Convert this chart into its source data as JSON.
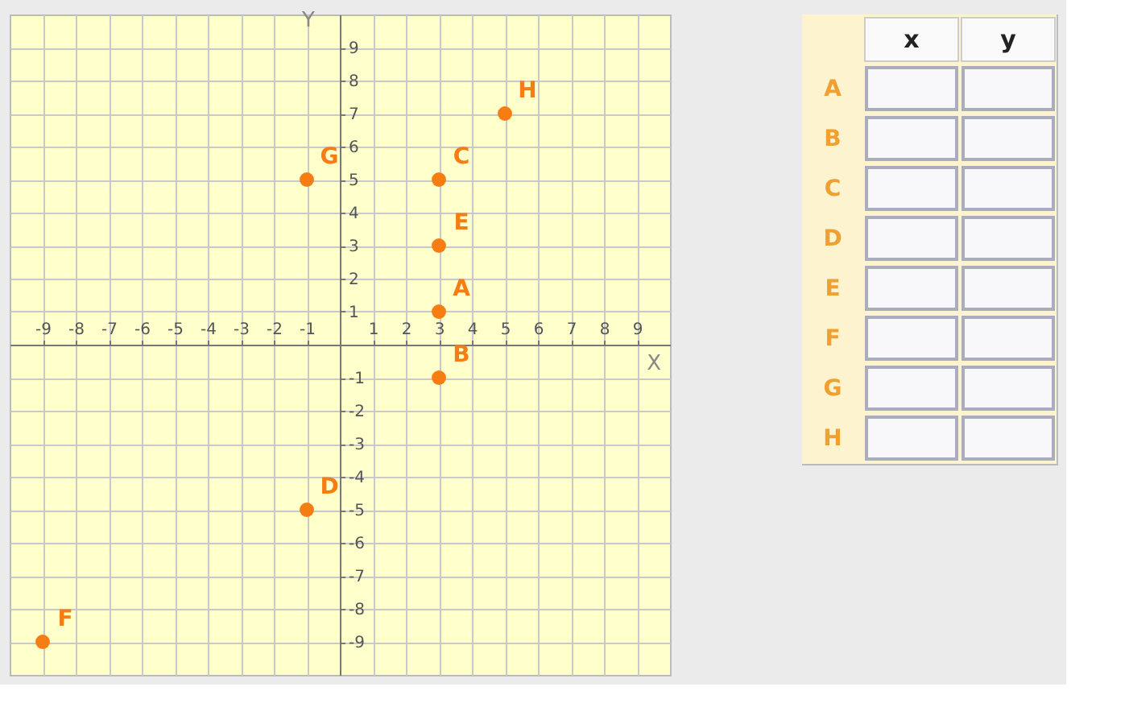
{
  "chart_data": [
    {
      "type": "scatter",
      "xlabel": "X",
      "ylabel": "Y",
      "x": [
        3,
        3,
        3,
        -1,
        3,
        -9,
        -1,
        5
      ],
      "values": [
        1,
        -1,
        5,
        -5,
        3,
        -9,
        5,
        7
      ],
      "color": "#f57d14",
      "marker": "circle",
      "grid": true,
      "xlim": [
        -10,
        10
      ],
      "ylim": [
        -10,
        10
      ],
      "xticks": [
        -9,
        -8,
        -7,
        -6,
        -5,
        -4,
        -3,
        -2,
        -1,
        1,
        2,
        3,
        4,
        5,
        6,
        7,
        8,
        9
      ],
      "yticks": [
        -9,
        -8,
        -7,
        -6,
        -5,
        -4,
        -3,
        -2,
        -1,
        1,
        2,
        3,
        4,
        5,
        6,
        7,
        8,
        9
      ],
      "annotations": [
        {
          "text": "A",
          "x": 3,
          "y": 1
        },
        {
          "text": "B",
          "x": 3,
          "y": -1
        },
        {
          "text": "C",
          "x": 3,
          "y": 5
        },
        {
          "text": "D",
          "x": -1,
          "y": -5
        },
        {
          "text": "E",
          "x": 3,
          "y": 3
        },
        {
          "text": "F",
          "x": -9,
          "y": -9
        },
        {
          "text": "G",
          "x": -1,
          "y": 5
        },
        {
          "text": "H",
          "x": 5,
          "y": 7
        }
      ]
    },
    {
      "type": "other",
      "categories": [
        "x",
        "y"
      ],
      "y_categories": [
        "A",
        "B",
        "C",
        "D",
        "E",
        "F",
        "G",
        "H"
      ]
    }
  ]
}
